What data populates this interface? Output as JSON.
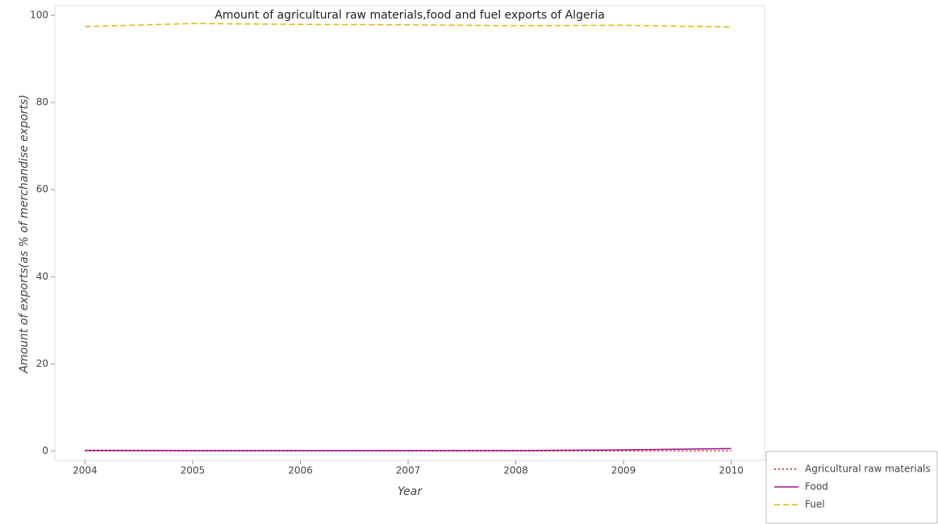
{
  "chart_data": {
    "type": "line",
    "title": "Amount of agricultural raw materials,food and fuel exports of Algeria",
    "x_label": "Year",
    "y_label": "Amount of exports(as % of merchandise exports)",
    "x": [
      2004,
      2005,
      2006,
      2007,
      2008,
      2009,
      2010
    ],
    "xlim": [
      2003.72,
      2010.31
    ],
    "xticks": [
      2004,
      2005,
      2006,
      2007,
      2008,
      2009,
      2010
    ],
    "ylim": [
      -2.1,
      102.2
    ],
    "yticks": [
      0,
      20,
      40,
      60,
      80,
      100
    ],
    "legend": "bottom-right",
    "series": [
      {
        "name": "Agricultural raw materials",
        "color": "#cc1111",
        "dash": "dotted",
        "values": [
          0.05,
          0.05,
          0.04,
          0.04,
          0.03,
          0.05,
          0.1
        ]
      },
      {
        "name": "Food",
        "color": "#a0108f",
        "dash": "solid",
        "values": [
          0.2,
          0.15,
          0.15,
          0.15,
          0.15,
          0.3,
          0.6
        ]
      },
      {
        "name": "Fuel",
        "color": "#e8b400",
        "dash": "dashed",
        "values": [
          97.4,
          98.1,
          97.9,
          97.8,
          97.6,
          97.7,
          97.3
        ]
      }
    ]
  }
}
